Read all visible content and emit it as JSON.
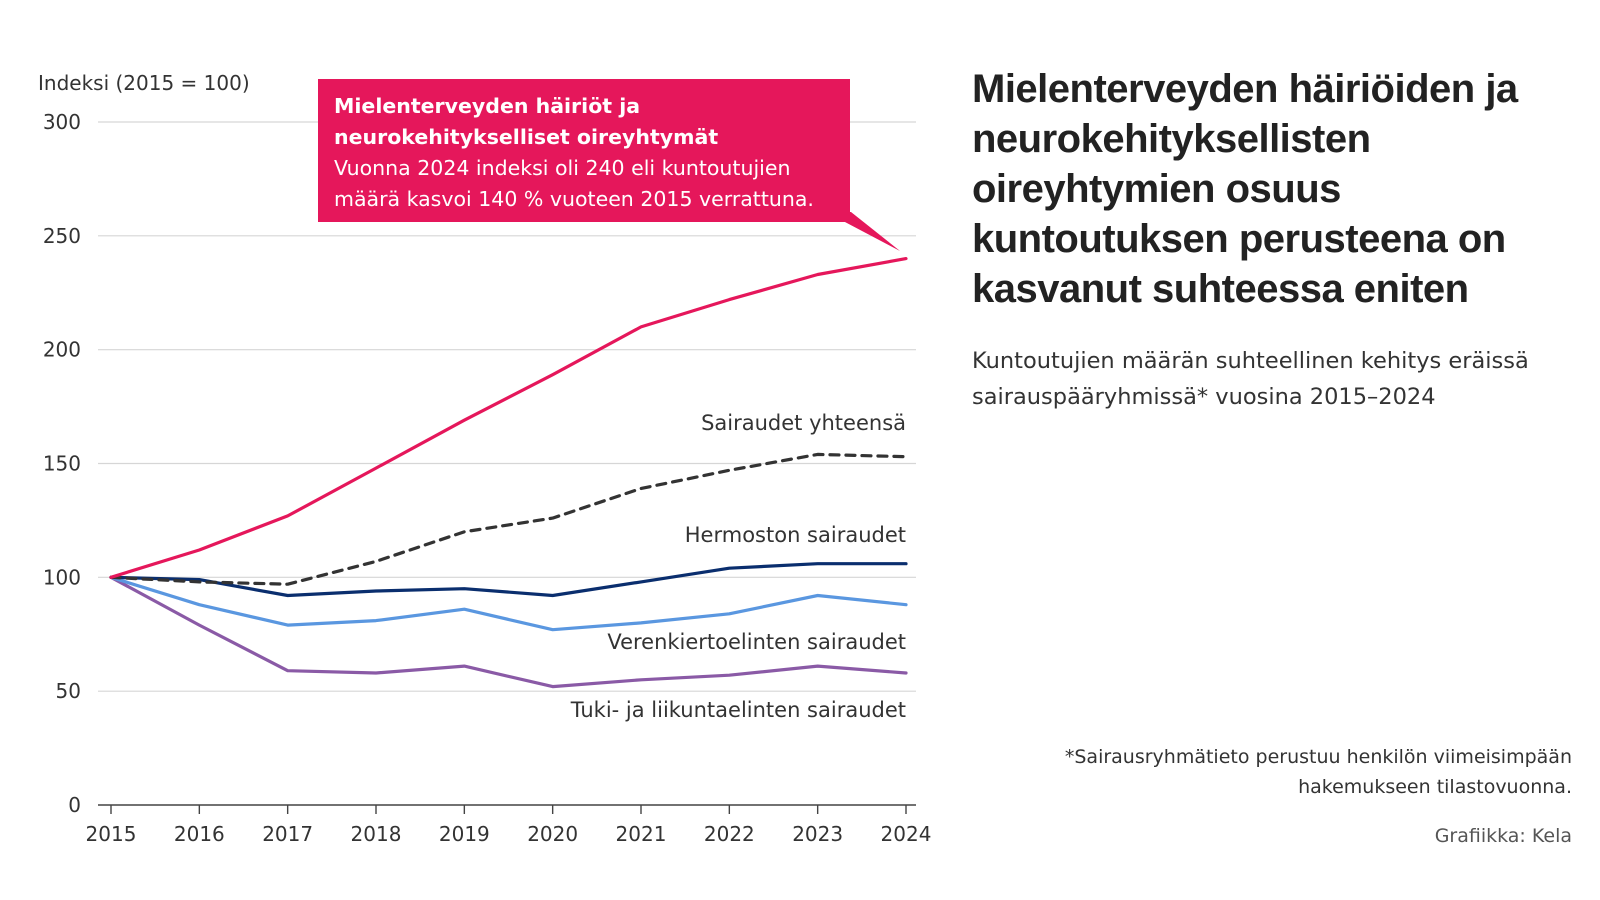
{
  "chart_data": {
    "type": "line",
    "ylabel": "Indeksi (2015 = 100)",
    "ylim": [
      0,
      300
    ],
    "yticks": [
      0,
      50,
      100,
      150,
      200,
      250,
      300
    ],
    "categories": [
      "2015",
      "2016",
      "2017",
      "2018",
      "2019",
      "2020",
      "2021",
      "2022",
      "2023",
      "2024"
    ],
    "grid": true,
    "series": [
      {
        "id": "mental",
        "name": "Mielenterveyden häiriöt ja neurokehitykselliset oireyhtymät",
        "color": "#e5175b",
        "dashed": false,
        "values": [
          100,
          112,
          127,
          148,
          169,
          189,
          210,
          222,
          233,
          240
        ]
      },
      {
        "id": "total",
        "name": "Sairaudet yhteensä",
        "color": "#333333",
        "dashed": true,
        "values": [
          100,
          98,
          97,
          107,
          120,
          126,
          139,
          147,
          154,
          153
        ]
      },
      {
        "id": "nervous",
        "name": "Hermoston sairaudet",
        "color": "#0a2e6e",
        "dashed": false,
        "values": [
          100,
          99,
          92,
          94,
          95,
          92,
          98,
          104,
          106,
          106
        ]
      },
      {
        "id": "circulatory",
        "name": "Verenkiertoelinten sairaudet",
        "color": "#5a97e0",
        "dashed": false,
        "values": [
          100,
          88,
          79,
          81,
          86,
          77,
          80,
          84,
          92,
          88
        ]
      },
      {
        "id": "musculoskeletal",
        "name": "Tuki- ja liikuntaelinten sairaudet",
        "color": "#8a5aa6",
        "dashed": false,
        "values": [
          100,
          79,
          59,
          58,
          61,
          52,
          55,
          57,
          61,
          58
        ]
      }
    ],
    "callout": {
      "title": "Mielenterveyden häiriöt ja neurokehitykselliset oireyhtymät",
      "text": "Vuonna 2024 indeksi oli 240 eli kuntoutujien määrä kasvoi 140 % vuoteen 2015 verrattuna."
    }
  },
  "title": "Mielenterveyden häiriöiden ja neurokehityksellisten oireyhtymien osuus kuntoutuksen perusteena on kasvanut suhteessa eniten",
  "subtitle": "Kuntoutujien määrän suhteellinen kehitys eräissä sairauspääryhmissä* vuosina 2015–2024",
  "footnote": "*Sairausryhmätieto perustuu henkilön viimeisimpään hakemukseen tilastovuonna.",
  "credit": "Grafiikka: Kela"
}
